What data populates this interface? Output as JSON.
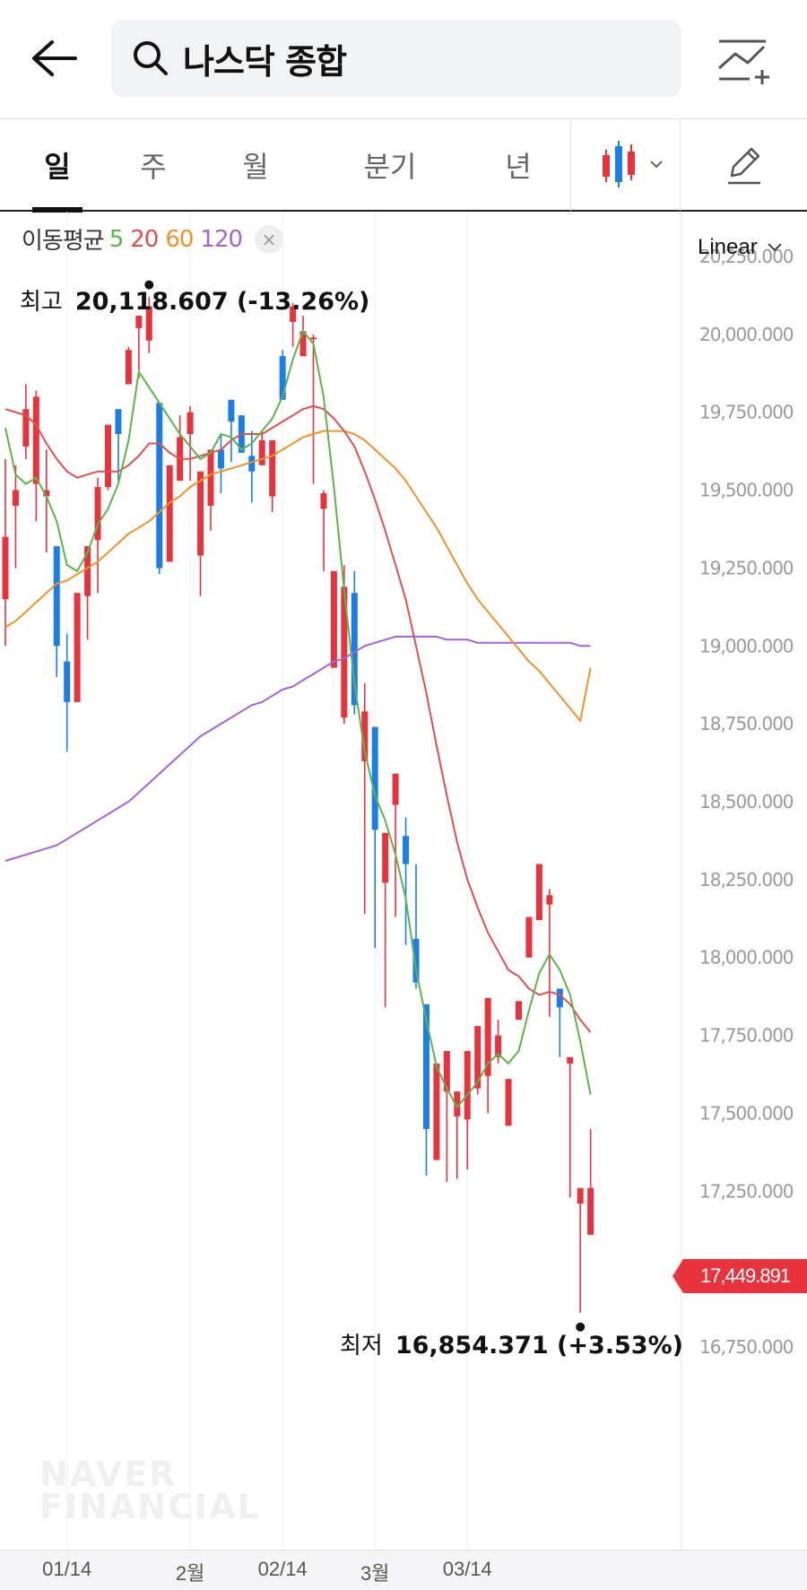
{
  "header": {
    "back_icon": "arrow-left-icon",
    "search_query": "나스닥 종합",
    "compare_icon": "chart-add-icon"
  },
  "tabs": [
    {
      "label": "일",
      "active": true
    },
    {
      "label": "주",
      "active": false
    },
    {
      "label": "월",
      "active": false
    },
    {
      "label": "분기",
      "active": false
    },
    {
      "label": "년",
      "active": false
    }
  ],
  "toolbar": {
    "chart_type_icon": "candlestick-icon",
    "draw_icon": "pencil-icon"
  },
  "ma_legend": {
    "label": "이동평균",
    "periods": [
      {
        "value": "5",
        "color": "#5bb54a"
      },
      {
        "value": "20",
        "color": "#e0504f"
      },
      {
        "value": "60",
        "color": "#f0922a"
      },
      {
        "value": "120",
        "color": "#a264d8"
      }
    ],
    "close_icon": "×"
  },
  "scale": "Linear",
  "high": {
    "label": "최고",
    "value": "20,118.607 (-13.26%)"
  },
  "low": {
    "label": "최저",
    "value": "16,854.371 (+3.53%)"
  },
  "current_price": "17,449.891",
  "watermark": [
    "NAVER",
    "FINANCIAL"
  ],
  "colors": {
    "up": "#e8333d",
    "down": "#1b7ee8"
  },
  "chart_data": {
    "type": "candlestick",
    "y_ticks": [
      "20,250.000",
      "20,000.000",
      "19,750.000",
      "19,500.000",
      "19,250.000",
      "19,000.000",
      "18,750.000",
      "18,500.000",
      "18,250.000",
      "18,000.000",
      "17,750.000",
      "17,500.000",
      "17,250.000",
      "17,000.000",
      "16,750.000"
    ],
    "ylim": [
      16750,
      20250
    ],
    "x_ticks": [
      "01/14",
      "2월",
      "02/14",
      "3월",
      "03/14"
    ],
    "x_tick_index": [
      6,
      18,
      27,
      36,
      45
    ],
    "candles": [
      [
        19150,
        19600,
        19000,
        19350
      ],
      [
        19450,
        19580,
        19250,
        19500
      ],
      [
        19640,
        19840,
        19600,
        19760
      ],
      [
        19520,
        19820,
        19400,
        19800
      ],
      [
        19480,
        19630,
        19300,
        19500
      ],
      [
        19320,
        19200,
        18900,
        19000
      ],
      [
        18950,
        19040,
        18660,
        18820
      ],
      [
        18820,
        19100,
        18830,
        19170
      ],
      [
        19160,
        19300,
        19020,
        19320
      ],
      [
        19340,
        19540,
        19170,
        19510
      ],
      [
        19510,
        19690,
        19500,
        19710
      ],
      [
        19760,
        19660,
        19530,
        19680
      ],
      [
        19840,
        19960,
        19840,
        19950
      ],
      [
        20020,
        20060,
        19860,
        20060
      ],
      [
        19980,
        20120,
        19940,
        20090
      ],
      [
        19780,
        19610,
        19230,
        19250
      ],
      [
        19270,
        19410,
        19440,
        19580
      ],
      [
        19530,
        19740,
        19530,
        19670
      ],
      [
        19680,
        19770,
        19530,
        19750
      ],
      [
        19290,
        19450,
        19160,
        19560
      ],
      [
        19450,
        19560,
        19370,
        19630
      ],
      [
        19630,
        19680,
        19490,
        19570
      ],
      [
        19790,
        19740,
        19590,
        19720
      ],
      [
        19740,
        19640,
        19700,
        19620
      ],
      [
        19610,
        19690,
        19460,
        19560
      ],
      [
        19580,
        19690,
        19600,
        19660
      ],
      [
        19480,
        19650,
        19430,
        19660
      ],
      [
        19930,
        19950,
        19800,
        19790
      ],
      [
        20040,
        20100,
        19960,
        20090
      ],
      [
        19930,
        20060,
        19940,
        20010
      ],
      [
        19990,
        20000,
        19520,
        19990
      ],
      [
        19440,
        19500,
        19240,
        19490
      ],
      [
        18930,
        19240,
        18930,
        19240
      ],
      [
        18770,
        19260,
        18750,
        19190
      ],
      [
        19170,
        19240,
        18780,
        18810
      ],
      [
        18630,
        18880,
        18140,
        18790
      ],
      [
        18740,
        18720,
        18030,
        18410
      ],
      [
        18240,
        18260,
        17840,
        18400
      ],
      [
        18490,
        18560,
        18130,
        18590
      ],
      [
        18390,
        18450,
        18040,
        18300
      ],
      [
        18060,
        18300,
        17900,
        17920
      ],
      [
        17850,
        17850,
        17300,
        17450
      ],
      [
        17350,
        17570,
        17500,
        17660
      ],
      [
        17570,
        17650,
        17280,
        17700
      ],
      [
        17490,
        17290,
        17290,
        17570
      ],
      [
        17480,
        17600,
        17320,
        17700
      ],
      [
        17580,
        17700,
        17560,
        17780
      ],
      [
        17620,
        17780,
        17500,
        17870
      ],
      [
        17680,
        17800,
        17660,
        17750
      ],
      [
        17460,
        17590,
        17540,
        17610
      ],
      [
        17800,
        17800,
        17830,
        17860
      ],
      [
        18000,
        18060,
        18000,
        18130
      ],
      [
        18120,
        18230,
        18170,
        18300
      ],
      [
        18170,
        18220,
        17810,
        18200
      ],
      [
        17900,
        17790,
        17680,
        17840
      ],
      [
        17660,
        17380,
        17230,
        17680
      ],
      [
        17210,
        17000,
        16860,
        17260
      ],
      [
        17110,
        17130,
        17450,
        17260
      ]
    ],
    "ma5": [
      [
        0,
        19700
      ],
      [
        1,
        19550
      ],
      [
        2,
        19520
      ],
      [
        3,
        19540
      ],
      [
        4,
        19480
      ],
      [
        5,
        19400
      ],
      [
        6,
        19260
      ],
      [
        7,
        19240
      ],
      [
        8,
        19300
      ],
      [
        9,
        19390
      ],
      [
        10,
        19440
      ],
      [
        11,
        19520
      ],
      [
        12,
        19660
      ],
      [
        13,
        19880
      ],
      [
        14,
        19830
      ],
      [
        15,
        19780
      ],
      [
        16,
        19730
      ],
      [
        17,
        19680
      ],
      [
        18,
        19640
      ],
      [
        19,
        19600
      ],
      [
        20,
        19620
      ],
      [
        21,
        19680
      ],
      [
        22,
        19670
      ],
      [
        23,
        19630
      ],
      [
        24,
        19650
      ],
      [
        25,
        19690
      ],
      [
        26,
        19730
      ],
      [
        27,
        19800
      ],
      [
        28,
        19920
      ],
      [
        29,
        20010
      ],
      [
        30,
        19970
      ],
      [
        31,
        19800
      ],
      [
        32,
        19510
      ],
      [
        33,
        19180
      ],
      [
        34,
        18880
      ],
      [
        35,
        18660
      ],
      [
        36,
        18520
      ],
      [
        37,
        18440
      ],
      [
        38,
        18330
      ],
      [
        39,
        18190
      ],
      [
        40,
        17960
      ],
      [
        41,
        17800
      ],
      [
        42,
        17650
      ],
      [
        43,
        17580
      ],
      [
        44,
        17520
      ],
      [
        45,
        17560
      ],
      [
        46,
        17600
      ],
      [
        47,
        17660
      ],
      [
        48,
        17690
      ],
      [
        49,
        17660
      ],
      [
        50,
        17700
      ],
      [
        51,
        17830
      ],
      [
        52,
        17950
      ],
      [
        53,
        18010
      ],
      [
        54,
        17960
      ],
      [
        55,
        17880
      ],
      [
        56,
        17730
      ],
      [
        57,
        17560
      ]
    ],
    "ma20": [
      [
        0,
        19760
      ],
      [
        1,
        19750
      ],
      [
        2,
        19740
      ],
      [
        3,
        19710
      ],
      [
        4,
        19650
      ],
      [
        5,
        19600
      ],
      [
        6,
        19560
      ],
      [
        7,
        19540
      ],
      [
        8,
        19550
      ],
      [
        9,
        19560
      ],
      [
        10,
        19560
      ],
      [
        11,
        19560
      ],
      [
        12,
        19580
      ],
      [
        13,
        19610
      ],
      [
        14,
        19650
      ],
      [
        15,
        19650
      ],
      [
        16,
        19620
      ],
      [
        17,
        19600
      ],
      [
        18,
        19600
      ],
      [
        19,
        19610
      ],
      [
        20,
        19620
      ],
      [
        21,
        19630
      ],
      [
        22,
        19660
      ],
      [
        23,
        19680
      ],
      [
        24,
        19680
      ],
      [
        25,
        19680
      ],
      [
        26,
        19700
      ],
      [
        27,
        19720
      ],
      [
        28,
        19740
      ],
      [
        29,
        19760
      ],
      [
        30,
        19770
      ],
      [
        31,
        19760
      ],
      [
        32,
        19730
      ],
      [
        33,
        19690
      ],
      [
        34,
        19640
      ],
      [
        35,
        19560
      ],
      [
        36,
        19470
      ],
      [
        37,
        19370
      ],
      [
        38,
        19260
      ],
      [
        39,
        19150
      ],
      [
        40,
        19000
      ],
      [
        41,
        18850
      ],
      [
        42,
        18680
      ],
      [
        43,
        18520
      ],
      [
        44,
        18370
      ],
      [
        45,
        18250
      ],
      [
        46,
        18160
      ],
      [
        47,
        18080
      ],
      [
        48,
        18020
      ],
      [
        49,
        17960
      ],
      [
        50,
        17940
      ],
      [
        51,
        17900
      ],
      [
        52,
        17880
      ],
      [
        53,
        17890
      ],
      [
        54,
        17880
      ],
      [
        55,
        17850
      ],
      [
        56,
        17800
      ],
      [
        57,
        17760
      ]
    ],
    "ma60": [
      [
        0,
        19060
      ],
      [
        1,
        19080
      ],
      [
        2,
        19110
      ],
      [
        3,
        19140
      ],
      [
        4,
        19170
      ],
      [
        5,
        19200
      ],
      [
        6,
        19210
      ],
      [
        7,
        19230
      ],
      [
        8,
        19250
      ],
      [
        9,
        19270
      ],
      [
        10,
        19300
      ],
      [
        11,
        19330
      ],
      [
        12,
        19360
      ],
      [
        13,
        19380
      ],
      [
        14,
        19400
      ],
      [
        15,
        19430
      ],
      [
        16,
        19460
      ],
      [
        17,
        19480
      ],
      [
        18,
        19510
      ],
      [
        19,
        19530
      ],
      [
        20,
        19550
      ],
      [
        21,
        19560
      ],
      [
        22,
        19570
      ],
      [
        23,
        19580
      ],
      [
        24,
        19590
      ],
      [
        25,
        19600
      ],
      [
        26,
        19610
      ],
      [
        27,
        19630
      ],
      [
        28,
        19650
      ],
      [
        29,
        19670
      ],
      [
        30,
        19680
      ],
      [
        31,
        19690
      ],
      [
        32,
        19690
      ],
      [
        33,
        19690
      ],
      [
        34,
        19680
      ],
      [
        35,
        19660
      ],
      [
        36,
        19630
      ],
      [
        37,
        19600
      ],
      [
        38,
        19570
      ],
      [
        39,
        19530
      ],
      [
        40,
        19480
      ],
      [
        41,
        19430
      ],
      [
        42,
        19380
      ],
      [
        43,
        19320
      ],
      [
        44,
        19260
      ],
      [
        45,
        19200
      ],
      [
        46,
        19150
      ],
      [
        47,
        19110
      ],
      [
        48,
        19070
      ],
      [
        49,
        19030
      ],
      [
        50,
        18990
      ],
      [
        51,
        18950
      ],
      [
        52,
        18920
      ],
      [
        53,
        18880
      ],
      [
        54,
        18840
      ],
      [
        55,
        18800
      ],
      [
        56,
        18760
      ],
      [
        57,
        18930
      ]
    ],
    "ma120": [
      [
        0,
        18310
      ],
      [
        1,
        18320
      ],
      [
        2,
        18330
      ],
      [
        3,
        18340
      ],
      [
        4,
        18350
      ],
      [
        5,
        18360
      ],
      [
        6,
        18380
      ],
      [
        7,
        18400
      ],
      [
        8,
        18420
      ],
      [
        9,
        18440
      ],
      [
        10,
        18460
      ],
      [
        11,
        18480
      ],
      [
        12,
        18500
      ],
      [
        13,
        18530
      ],
      [
        14,
        18560
      ],
      [
        15,
        18590
      ],
      [
        16,
        18620
      ],
      [
        17,
        18650
      ],
      [
        18,
        18680
      ],
      [
        19,
        18710
      ],
      [
        20,
        18730
      ],
      [
        21,
        18750
      ],
      [
        22,
        18770
      ],
      [
        23,
        18790
      ],
      [
        24,
        18810
      ],
      [
        25,
        18820
      ],
      [
        26,
        18840
      ],
      [
        27,
        18860
      ],
      [
        28,
        18870
      ],
      [
        29,
        18890
      ],
      [
        30,
        18910
      ],
      [
        31,
        18930
      ],
      [
        32,
        18950
      ],
      [
        33,
        18960
      ],
      [
        34,
        18980
      ],
      [
        35,
        19000
      ],
      [
        36,
        19010
      ],
      [
        37,
        19020
      ],
      [
        38,
        19030
      ],
      [
        39,
        19030
      ],
      [
        40,
        19030
      ],
      [
        41,
        19030
      ],
      [
        42,
        19030
      ],
      [
        43,
        19020
      ],
      [
        44,
        19020
      ],
      [
        45,
        19020
      ],
      [
        46,
        19010
      ],
      [
        47,
        19010
      ],
      [
        48,
        19010
      ],
      [
        49,
        19010
      ],
      [
        50,
        19010
      ],
      [
        51,
        19010
      ],
      [
        52,
        19010
      ],
      [
        53,
        19010
      ],
      [
        54,
        19010
      ],
      [
        55,
        19010
      ],
      [
        56,
        19000
      ],
      [
        57,
        19000
      ]
    ],
    "high_marker": {
      "index": 14,
      "value": 20118.607
    },
    "low_marker": {
      "index": 56,
      "value": 16854.371
    }
  }
}
